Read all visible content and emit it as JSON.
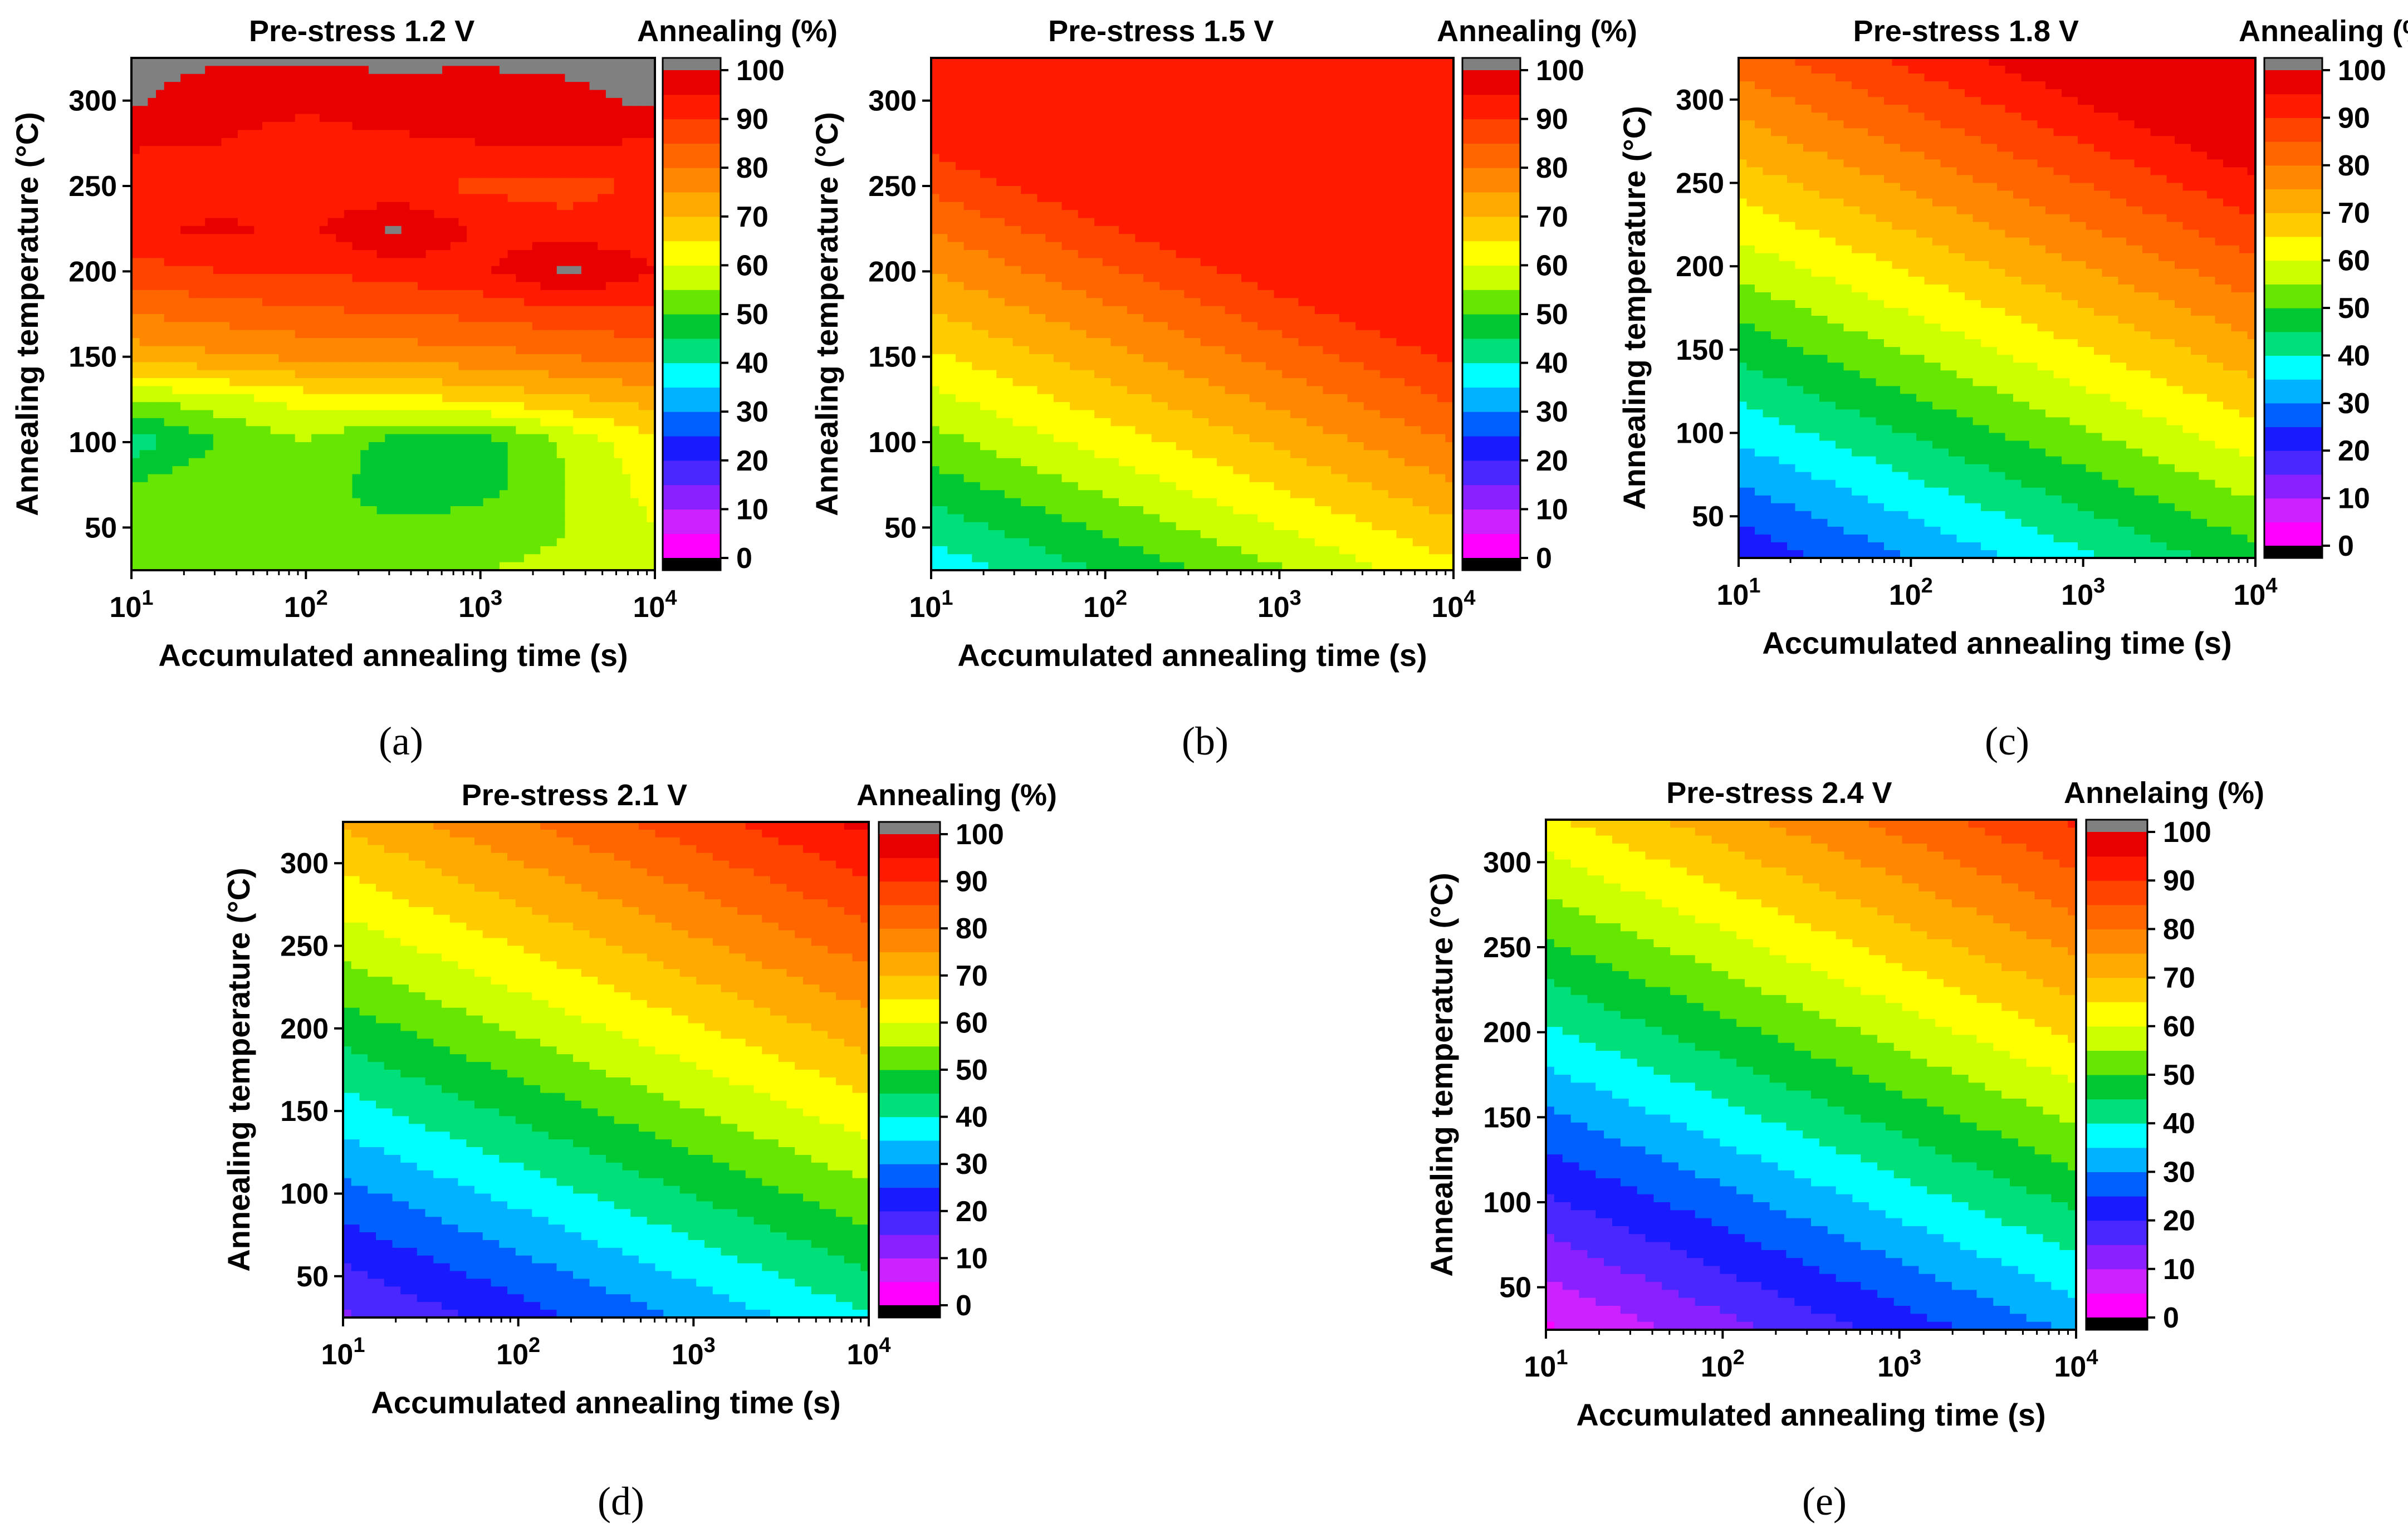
{
  "figure": {
    "colormap": [
      "#ff00ff",
      "#cc22ff",
      "#8a20ff",
      "#4a26ff",
      "#1a1aff",
      "#0060ff",
      "#00b2ff",
      "#00ffff",
      "#00e07a",
      "#00c832",
      "#66e600",
      "#ccff00",
      "#ffff00",
      "#ffcc00",
      "#ffaa00",
      "#ff8800",
      "#ff6600",
      "#ff4400",
      "#ff1a00",
      "#e80000"
    ],
    "below_color": "#000000",
    "above_color": "#808080"
  },
  "chart_data": [
    {
      "type": "contour",
      "panel_label": "(a)",
      "title": "Pre-stress 1.2 V",
      "colorbar_title": "Annealing (%)",
      "xlabel": "Accumulated annealing time (s)",
      "ylabel": "Annealing temperature (°C)",
      "x_scale": "log",
      "xlim": [
        10,
        10000
      ],
      "ylim": [
        25,
        325
      ],
      "x_ticks": [
        {
          "value": 10,
          "base": "10",
          "exp": "1"
        },
        {
          "value": 100,
          "base": "10",
          "exp": "2"
        },
        {
          "value": 1000,
          "base": "10",
          "exp": "3"
        },
        {
          "value": 10000,
          "base": "10",
          "exp": "4"
        }
      ],
      "y_ticks": [
        50,
        100,
        150,
        200,
        250,
        300
      ],
      "colorbar_range": [
        0,
        100
      ],
      "colorbar_ticks": [
        0,
        10,
        20,
        30,
        40,
        50,
        60,
        70,
        80,
        90,
        100
      ],
      "x": [
        10,
        31.6,
        100,
        316,
        1000,
        3162,
        10000
      ],
      "y": [
        25,
        50,
        75,
        100,
        125,
        150,
        175,
        200,
        225,
        250,
        275,
        300,
        325
      ],
      "z": [
        [
          52,
          54,
          53,
          52,
          55,
          56,
          58
        ],
        [
          53,
          55,
          52,
          51,
          52,
          55,
          60
        ],
        [
          50,
          55,
          53,
          47,
          48,
          55,
          62
        ],
        [
          42,
          50,
          55,
          48,
          47,
          56,
          64
        ],
        [
          55,
          58,
          62,
          63,
          66,
          69,
          72
        ],
        [
          72,
          74,
          76,
          77,
          78,
          80,
          82
        ],
        [
          80,
          82,
          84,
          85,
          86,
          88,
          89
        ],
        [
          88,
          90,
          90,
          92,
          94,
          101,
          95
        ],
        [
          94,
          96,
          94,
          101,
          94,
          92,
          93
        ],
        [
          90,
          92,
          90,
          91,
          89,
          88,
          91
        ],
        [
          96,
          95,
          93,
          94,
          95,
          96,
          94
        ],
        [
          101,
          97,
          96,
          98,
          97,
          99,
          101
        ],
        [
          101,
          101,
          101,
          101,
          101,
          101,
          101
        ]
      ]
    },
    {
      "type": "contour",
      "panel_label": "(b)",
      "title": "Pre-stress 1.5 V",
      "colorbar_title": "Annealing (%)",
      "xlabel": "Accumulated annealing time (s)",
      "ylabel": "Annealing temperature (°C)",
      "x_scale": "log",
      "xlim": [
        10,
        10000
      ],
      "ylim": [
        25,
        325
      ],
      "x_ticks": [
        {
          "value": 10,
          "base": "10",
          "exp": "1"
        },
        {
          "value": 100,
          "base": "10",
          "exp": "2"
        },
        {
          "value": 1000,
          "base": "10",
          "exp": "3"
        },
        {
          "value": 10000,
          "base": "10",
          "exp": "4"
        }
      ],
      "y_ticks": [
        50,
        100,
        150,
        200,
        250,
        300
      ],
      "colorbar_range": [
        0,
        100
      ],
      "colorbar_ticks": [
        0,
        10,
        20,
        30,
        40,
        50,
        60,
        70,
        80,
        90,
        100
      ],
      "model": {
        "base": 36.5,
        "temp_coef": 0.22,
        "time_coef": 9.0,
        "ref_temp": 25,
        "clip_max": 93
      }
    },
    {
      "type": "contour",
      "panel_label": "(c)",
      "title": "Pre-stress 1.8 V",
      "colorbar_title": "Annealing (%)",
      "xlabel": "Accumulated annealing time (s)",
      "ylabel": "Annealing temperature (°C)",
      "x_scale": "log",
      "xlim": [
        10,
        10000
      ],
      "ylim": [
        25,
        325
      ],
      "x_ticks": [
        {
          "value": 10,
          "base": "10",
          "exp": "1"
        },
        {
          "value": 100,
          "base": "10",
          "exp": "2"
        },
        {
          "value": 1000,
          "base": "10",
          "exp": "3"
        },
        {
          "value": 10000,
          "base": "10",
          "exp": "4"
        }
      ],
      "y_ticks": [
        50,
        100,
        150,
        200,
        250,
        300
      ],
      "colorbar_range": [
        0,
        100
      ],
      "colorbar_ticks": [
        0,
        10,
        20,
        30,
        40,
        50,
        60,
        70,
        80,
        90,
        100
      ],
      "model": {
        "base": 21.0,
        "temp_coef": 0.205,
        "time_coef": 9.0,
        "ref_temp": 25,
        "clip_max": 98
      }
    },
    {
      "type": "contour",
      "panel_label": "(d)",
      "title": "Pre-stress 2.1 V",
      "colorbar_title": "Annealing (%)",
      "xlabel": "Accumulated annealing time (s)",
      "ylabel": "Annealing temperature (°C)",
      "x_scale": "log",
      "xlim": [
        10,
        10000
      ],
      "ylim": [
        25,
        325
      ],
      "x_ticks": [
        {
          "value": 10,
          "base": "10",
          "exp": "1"
        },
        {
          "value": 100,
          "base": "10",
          "exp": "2"
        },
        {
          "value": 1000,
          "base": "10",
          "exp": "3"
        },
        {
          "value": 10000,
          "base": "10",
          "exp": "4"
        }
      ],
      "y_ticks": [
        50,
        100,
        150,
        200,
        250,
        300
      ],
      "colorbar_range": [
        0,
        100
      ],
      "colorbar_ticks": [
        0,
        10,
        20,
        30,
        40,
        50,
        60,
        70,
        80,
        90,
        100
      ],
      "model": {
        "base": 14.0,
        "temp_coef": 0.19,
        "time_coef": 8.5,
        "ref_temp": 25,
        "clip_max": 99
      }
    },
    {
      "type": "contour",
      "panel_label": "(e)",
      "title": "Pre-stress 2.4 V",
      "colorbar_title": "Annelaing (%)",
      "xlabel": "Accumulated annealing time (s)",
      "ylabel": "Annealing temperature (°C)",
      "x_scale": "log",
      "xlim": [
        10,
        10000
      ],
      "ylim": [
        25,
        325
      ],
      "x_ticks": [
        {
          "value": 10,
          "base": "10",
          "exp": "1"
        },
        {
          "value": 100,
          "base": "10",
          "exp": "2"
        },
        {
          "value": 1000,
          "base": "10",
          "exp": "3"
        },
        {
          "value": 10000,
          "base": "10",
          "exp": "4"
        }
      ],
      "y_ticks": [
        50,
        100,
        150,
        200,
        250,
        300
      ],
      "colorbar_range": [
        0,
        100
      ],
      "colorbar_ticks": [
        0,
        10,
        20,
        30,
        40,
        50,
        60,
        70,
        80,
        90,
        100
      ],
      "model": {
        "base": 4.0,
        "temp_coef": 0.2,
        "time_coef": 9.0,
        "ref_temp": 25,
        "clip_max": 99
      }
    }
  ]
}
